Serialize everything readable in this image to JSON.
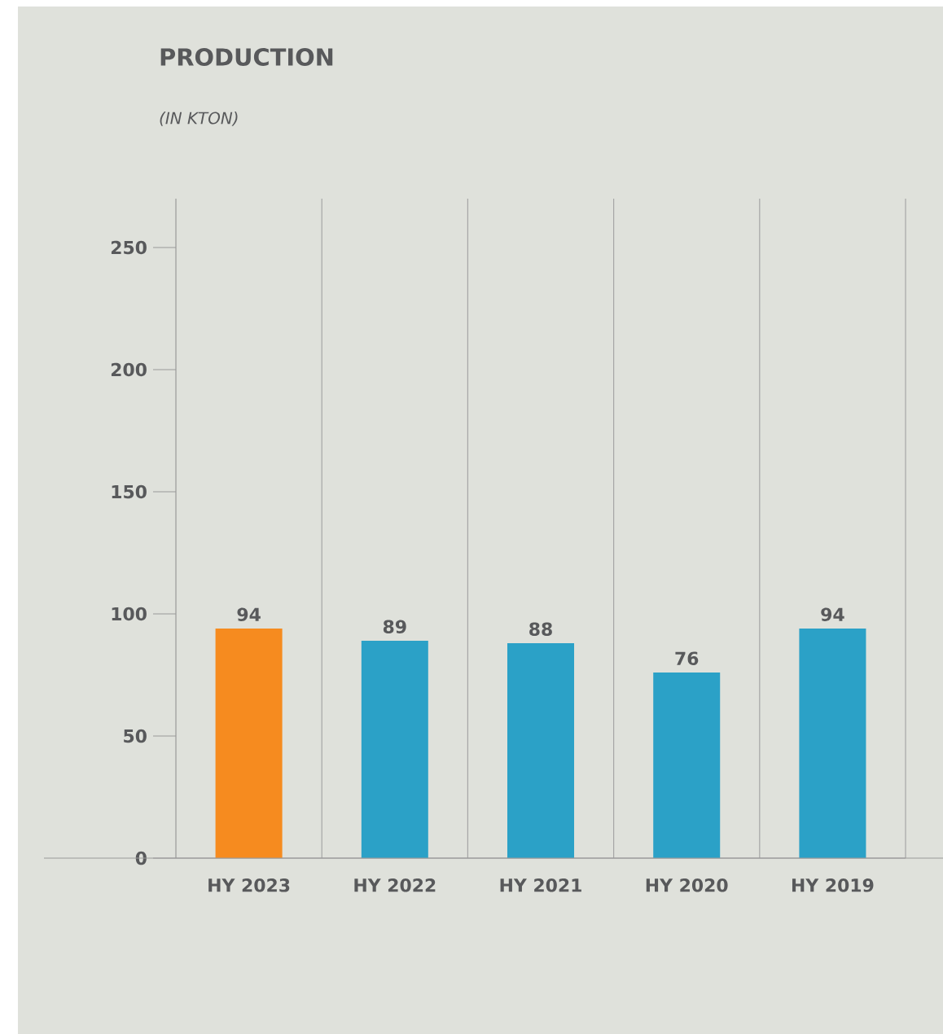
{
  "chart_data": {
    "type": "bar",
    "title": "PRODUCTION",
    "subtitle": "(IN KTON)",
    "categories": [
      "HY 2023",
      "HY 2022",
      "HY 2021",
      "HY 2020",
      "HY 2019"
    ],
    "values": [
      94,
      89,
      88,
      76,
      94
    ],
    "colors": [
      "#f68b1f",
      "#2ba1c7",
      "#2ba1c7",
      "#2ba1c7",
      "#2ba1c7"
    ],
    "ylim": [
      0,
      270
    ],
    "yticks": [
      0,
      50,
      100,
      150,
      200,
      250
    ],
    "grid": "x",
    "data_labels": true
  }
}
